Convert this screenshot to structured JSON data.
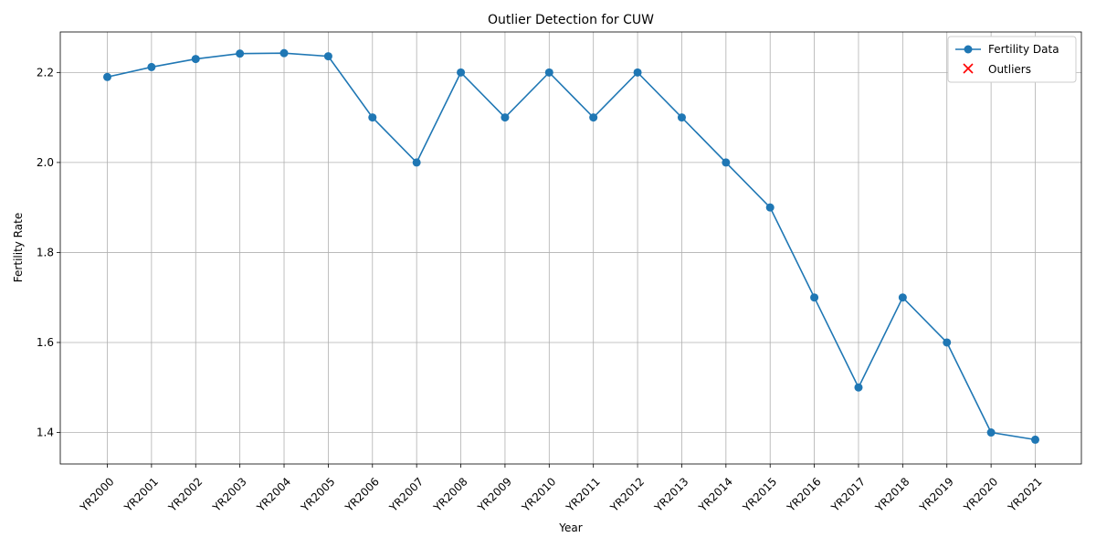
{
  "chart_data": {
    "type": "line",
    "title": "Outlier Detection for CUW",
    "xlabel": "Year",
    "ylabel": "Fertility Rate",
    "categories": [
      "YR2000",
      "YR2001",
      "YR2002",
      "YR2003",
      "YR2004",
      "YR2005",
      "YR2006",
      "YR2007",
      "YR2008",
      "YR2009",
      "YR2010",
      "YR2011",
      "YR2012",
      "YR2013",
      "YR2014",
      "YR2015",
      "YR2016",
      "YR2017",
      "YR2018",
      "YR2019",
      "YR2020",
      "YR2021"
    ],
    "series": [
      {
        "name": "Fertility Data",
        "color": "#1f77b4",
        "marker": "circle",
        "values": [
          2.19,
          2.212,
          2.23,
          2.242,
          2.243,
          2.236,
          2.1,
          2.0,
          2.2,
          2.1,
          2.2,
          2.1,
          2.2,
          2.1,
          2.0,
          1.9,
          1.7,
          1.5,
          1.7,
          1.6,
          1.4,
          1.384
        ]
      }
    ],
    "outliers": {
      "name": "Outliers",
      "color": "#ff0000",
      "marker": "x",
      "points": []
    },
    "yticks": [
      1.4,
      1.6,
      1.8,
      2.0,
      2.2
    ],
    "ylim": [
      1.33,
      2.29
    ],
    "grid": true,
    "legend_position": "top-right"
  }
}
